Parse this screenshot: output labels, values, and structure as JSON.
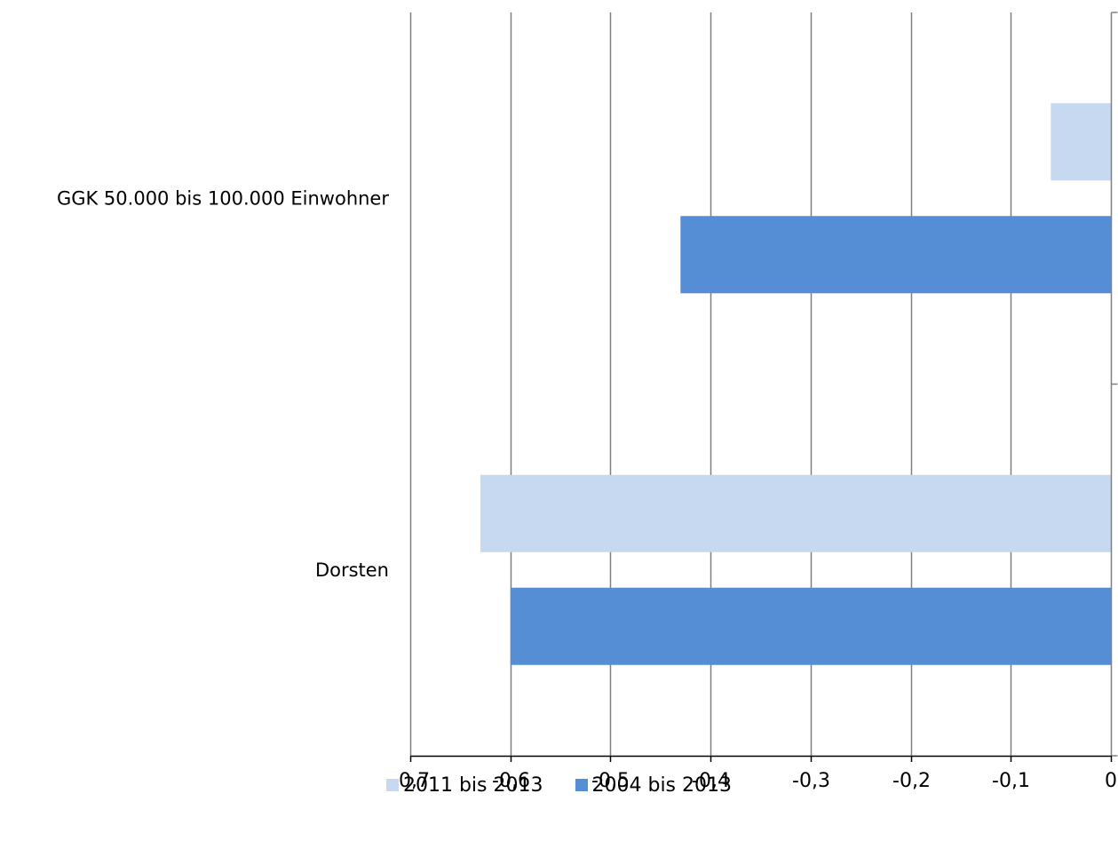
{
  "chart_data": {
    "type": "bar",
    "orientation": "horizontal",
    "categories": [
      "GGK 50.000 bis 100.000 Einwohner",
      "Dorsten"
    ],
    "series": [
      {
        "name": "2011 bis 2013",
        "color": "#C6D9F0",
        "values": [
          -0.06,
          -0.63
        ]
      },
      {
        "name": "2004 bis 2013",
        "color": "#558ED5",
        "values": [
          -0.43,
          -0.6
        ]
      }
    ],
    "xlim": [
      -0.7,
      0
    ],
    "xticks": [
      -0.7,
      -0.6,
      -0.5,
      -0.4,
      -0.3,
      -0.2,
      -0.1,
      0
    ],
    "xtick_labels": [
      "-0,7",
      "-0,6",
      "-0,5",
      "-0,4",
      "-0,3",
      "-0,2",
      "-0,1",
      "0"
    ],
    "grid": true,
    "legend_position": "bottom",
    "title": "",
    "xlabel": "",
    "ylabel": ""
  }
}
